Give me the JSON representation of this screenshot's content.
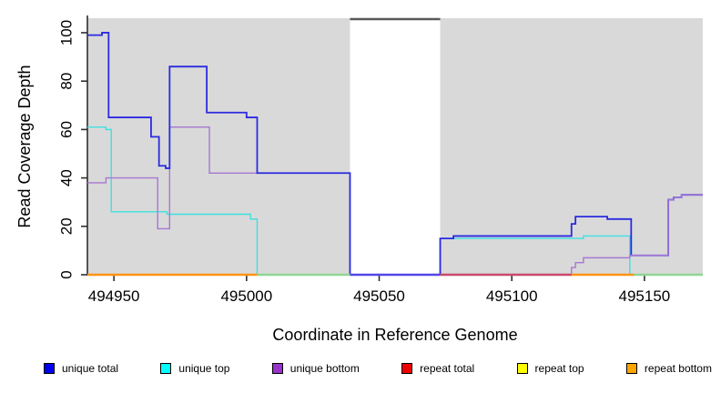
{
  "figure": {
    "x_title": "Coordinate in Reference Genome",
    "y_title": "Read Coverage Depth"
  },
  "chart_data": {
    "type": "line",
    "step": true,
    "xlabel": "Coordinate in Reference Genome",
    "ylabel": "Read Coverage Depth",
    "xlim": [
      494940,
      495172
    ],
    "ylim": [
      0,
      106
    ],
    "x_ticks": [
      494950,
      495000,
      495050,
      495100,
      495150
    ],
    "y_ticks": [
      0,
      20,
      40,
      60,
      80,
      100
    ],
    "grid": false,
    "legend_position": "bottom",
    "background_regions": [
      {
        "x1": 494940,
        "x2": 495039,
        "color": "#d9d9d9"
      },
      {
        "x1": 495073,
        "x2": 495172,
        "color": "#d9d9d9"
      }
    ],
    "gap_region": {
      "x1": 495039,
      "x2": 495073,
      "top_border_color": "#585858"
    },
    "series": [
      {
        "name": "unique total",
        "line_color": "#2b2be0",
        "width": 1.8,
        "draw": true,
        "points": [
          [
            494940,
            99
          ],
          [
            494945.5,
            100
          ],
          [
            494948,
            65
          ],
          [
            494964,
            57
          ],
          [
            494967,
            45
          ],
          [
            494969.5,
            44
          ],
          [
            494971,
            86
          ],
          [
            494985,
            67
          ],
          [
            495000,
            65
          ],
          [
            495004,
            42
          ],
          [
            495039,
            0
          ],
          [
            495073,
            15
          ],
          [
            495078,
            16
          ],
          [
            495122.5,
            21
          ],
          [
            495124,
            24
          ],
          [
            495136,
            23
          ],
          [
            495145,
            8
          ],
          [
            495159,
            31
          ],
          [
            495161,
            32
          ],
          [
            495164,
            33
          ]
        ],
        "xend": 495172
      },
      {
        "name": "unique top",
        "line_color": "#3fe0e0",
        "width": 1.4,
        "draw": true,
        "points": [
          [
            494940,
            61
          ],
          [
            494947,
            60
          ],
          [
            494949,
            26
          ],
          [
            494970,
            25
          ],
          [
            495001.5,
            23
          ],
          [
            495004,
            0
          ],
          [
            495073,
            15
          ],
          [
            495127,
            16
          ],
          [
            495144.5,
            0
          ]
        ],
        "xend": 495172
      },
      {
        "name": "unique bottom",
        "line_color": "#a678d2",
        "width": 1.4,
        "draw": true,
        "z_split_at": 495039,
        "points": [
          [
            494940,
            38
          ],
          [
            494947,
            40
          ],
          [
            494966.5,
            19
          ],
          [
            494971,
            61
          ],
          [
            494986,
            42
          ],
          [
            495039,
            0
          ],
          [
            495122.5,
            3
          ],
          [
            495124,
            5
          ],
          [
            495127,
            7
          ],
          [
            495144.5,
            8
          ],
          [
            495159,
            31
          ],
          [
            495161,
            32
          ],
          [
            495164,
            33
          ]
        ],
        "xend": 495172
      },
      {
        "name": "repeat total",
        "line_color": "#c9486b",
        "width": 2.2,
        "draw": false,
        "points": [
          [
            495073,
            0
          ]
        ],
        "xend": 495122.5
      },
      {
        "name": "repeat top",
        "line_color": "#e8e800",
        "width": 2.2,
        "draw": false,
        "points": [
          [
            494940,
            0
          ]
        ],
        "xend": 495172
      },
      {
        "name": "repeat bottom",
        "line_color": "#ff9414",
        "width": 2.2,
        "draw": false,
        "points": [
          [
            494940,
            0
          ],
          [
            495122.5,
            0
          ]
        ],
        "xend": 495146
      }
    ],
    "baseline_segments": [
      {
        "x1": 494940,
        "x2": 495004,
        "color": "#ff9414",
        "meaning": "repeat bottom = 0"
      },
      {
        "x1": 495004,
        "x2": 495039,
        "color": "#8fd694",
        "meaning": "unique top + repeat top = 0"
      },
      {
        "x1": 495039,
        "x2": 495073,
        "color": "#5346e8",
        "meaning": "unique total + unique bottom = 0 (uncovered gap)"
      },
      {
        "x1": 495073,
        "x2": 495122.5,
        "color": "#c9486b",
        "meaning": "repeat total = 0"
      },
      {
        "x1": 495122.5,
        "x2": 495146,
        "color": "#ff9414",
        "meaning": "repeat bottom = 0"
      },
      {
        "x1": 495146,
        "x2": 495172,
        "color": "#8fd694",
        "meaning": "unique top + repeat top = 0"
      }
    ]
  },
  "legend": {
    "items": [
      {
        "label": "unique total",
        "color": "#0000ee"
      },
      {
        "label": "unique top",
        "color": "#00ffff"
      },
      {
        "label": "unique bottom",
        "color": "#9932cc"
      },
      {
        "label": "repeat total",
        "color": "#ee0000"
      },
      {
        "label": "repeat top",
        "color": "#ffff00"
      },
      {
        "label": "repeat bottom",
        "color": "#ffa500"
      }
    ]
  }
}
